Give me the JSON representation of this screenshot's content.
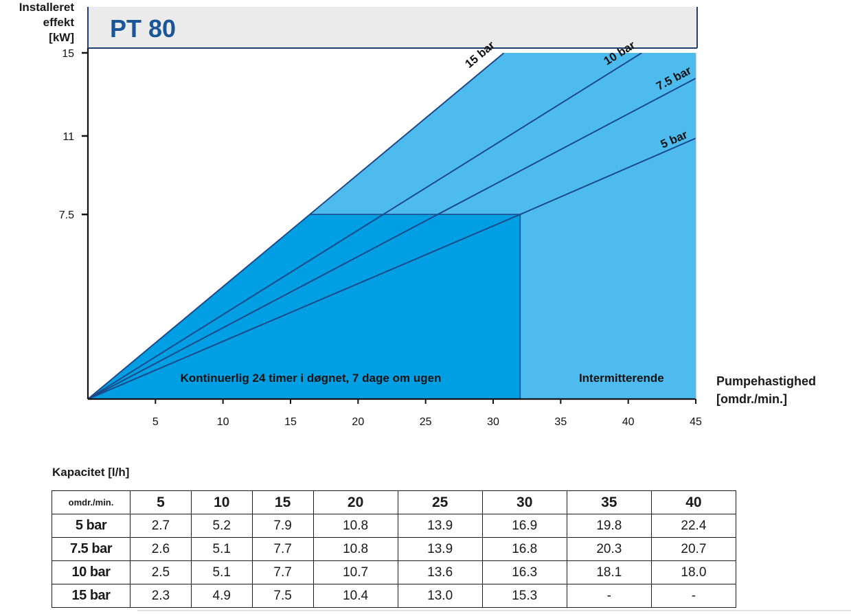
{
  "chart_data": {
    "type": "line",
    "title": "PT 80",
    "ylabel_lines": [
      "Installeret",
      "effekt",
      "[kW]"
    ],
    "xlabel_lines": [
      "Pumpehastighed",
      "[omdr./min.]"
    ],
    "xlim": [
      0,
      45
    ],
    "ylim": [
      0,
      15
    ],
    "x_ticks": [
      5,
      10,
      15,
      20,
      25,
      30,
      35,
      40,
      45
    ],
    "y_ticks": [
      7.5,
      11,
      15
    ],
    "y_ticks_plot_as": [
      8,
      11.4,
      15
    ],
    "series": [
      {
        "name": "15 bar",
        "points": [
          [
            0,
            0
          ],
          [
            30.8,
            15
          ]
        ]
      },
      {
        "name": "10 bar",
        "points": [
          [
            0,
            0
          ],
          [
            41,
            15
          ]
        ]
      },
      {
        "name": "7.5 bar",
        "points": [
          [
            0,
            0
          ],
          [
            45,
            13.9
          ]
        ]
      },
      {
        "name": "5 bar",
        "points": [
          [
            0,
            0
          ],
          [
            32,
            8
          ],
          [
            45,
            11.3
          ]
        ]
      }
    ],
    "regions": [
      {
        "label": "Kontinuerlig 24 timer i døgnet, 7 dage om ugen",
        "x": [
          0,
          32
        ],
        "y_max": 8
      },
      {
        "label": "Intermitterende",
        "x": [
          32,
          45
        ],
        "y_max": 15
      }
    ],
    "colors": {
      "continuous": "#009fe3",
      "intermittent": "#4dbbed",
      "line": "#1a4a8a",
      "title_box": "#ebebeb",
      "title_text": "#1a5599",
      "box_border": "#1f3f73"
    }
  },
  "capacity_table": {
    "title": "Kapacitet [l/h]",
    "corner": "omdr./min.",
    "columns": [
      "5",
      "10",
      "15",
      "20",
      "25",
      "30",
      "35",
      "40"
    ],
    "rows": [
      {
        "label": "5 bar",
        "values": [
          "2.7",
          "5.2",
          "7.9",
          "10.8",
          "13.9",
          "16.9",
          "19.8",
          "22.4"
        ]
      },
      {
        "label": "7.5 bar",
        "values": [
          "2.6",
          "5.1",
          "7.7",
          "10.8",
          "13.9",
          "16.8",
          "20.3",
          "20.7"
        ]
      },
      {
        "label": "10 bar",
        "values": [
          "2.5",
          "5.1",
          "7.7",
          "10.7",
          "13.6",
          "16.3",
          "18.1",
          "18.0"
        ]
      },
      {
        "label": "15 bar",
        "values": [
          "2.3",
          "4.9",
          "7.5",
          "10.4",
          "13.0",
          "15.3",
          "-",
          "-"
        ]
      }
    ]
  }
}
